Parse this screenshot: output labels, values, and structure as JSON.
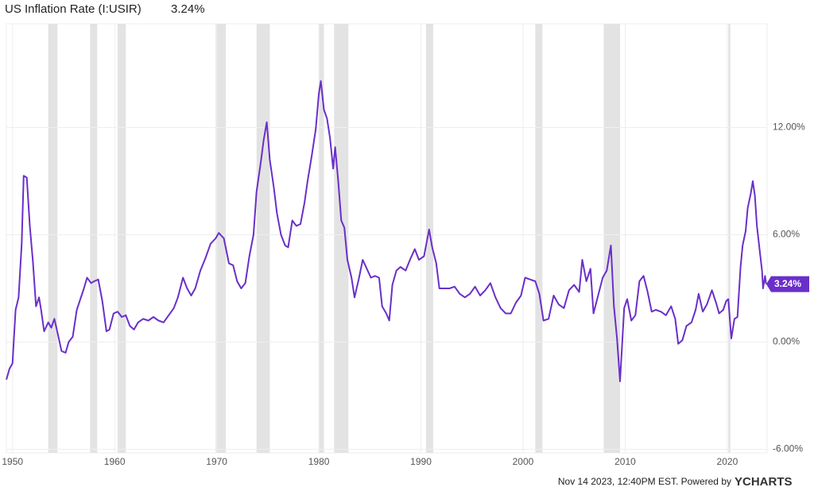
{
  "chart_data": {
    "type": "line",
    "title": "US Inflation Rate (I:USIR)",
    "current_label": "3.24%",
    "footer": "Nov 14 2023, 12:40PM EST. Powered by",
    "brand": "YCHARTS",
    "color": "#6a2fc9",
    "recession_color": "#e3e3e3",
    "recessions": [
      [
        1953.5,
        1954.4
      ],
      [
        1957.6,
        1958.3
      ],
      [
        1960.3,
        1961.1
      ],
      [
        1969.9,
        1970.9
      ],
      [
        1973.9,
        1975.2
      ],
      [
        1980.0,
        1980.5
      ],
      [
        1981.5,
        1982.9
      ],
      [
        1990.5,
        1991.2
      ],
      [
        2001.2,
        2001.9
      ],
      [
        2007.9,
        2009.5
      ],
      [
        2020.1,
        2020.3
      ]
    ],
    "xlim": [
      1949.4,
      2023.9
    ],
    "xticks": [
      1950,
      1960,
      1970,
      1980,
      1990,
      2000,
      2010,
      2020
    ],
    "ylim": [
      -6.2,
      17.8
    ],
    "yticks": [
      {
        "value": -6,
        "label": "-6.00%"
      },
      {
        "value": 0,
        "label": "0.00%"
      },
      {
        "value": 6,
        "label": "6.00%"
      },
      {
        "value": 12,
        "label": "12.00%"
      }
    ],
    "grid": true,
    "x": [
      1949.4,
      1949.7,
      1950.0,
      1950.3,
      1950.6,
      1950.9,
      1951.1,
      1951.4,
      1951.7,
      1952.0,
      1952.3,
      1952.6,
      1952.8,
      1953.1,
      1953.5,
      1953.8,
      1954.1,
      1954.5,
      1954.8,
      1955.2,
      1955.5,
      1955.9,
      1956.3,
      1956.7,
      1957.0,
      1957.3,
      1957.7,
      1958.0,
      1958.4,
      1958.8,
      1959.2,
      1959.5,
      1959.9,
      1960.3,
      1960.7,
      1961.1,
      1961.5,
      1961.9,
      1962.3,
      1962.8,
      1963.3,
      1963.8,
      1964.3,
      1964.8,
      1965.3,
      1965.8,
      1966.2,
      1966.7,
      1967.1,
      1967.5,
      1967.9,
      1968.4,
      1968.9,
      1969.4,
      1969.9,
      1970.2,
      1970.7,
      1971.2,
      1971.6,
      1972.0,
      1972.4,
      1972.8,
      1973.2,
      1973.6,
      1973.9,
      1974.3,
      1974.6,
      1974.9,
      1975.2,
      1975.6,
      1975.9,
      1976.3,
      1976.7,
      1977.0,
      1977.4,
      1977.8,
      1978.2,
      1978.6,
      1978.9,
      1979.3,
      1979.7,
      1980.0,
      1980.2,
      1980.5,
      1980.8,
      1981.1,
      1981.4,
      1981.6,
      1981.9,
      1982.2,
      1982.5,
      1982.8,
      1983.2,
      1983.5,
      1983.9,
      1984.3,
      1984.7,
      1985.1,
      1985.5,
      1985.9,
      1986.2,
      1986.6,
      1986.9,
      1987.2,
      1987.6,
      1988.0,
      1988.5,
      1989.0,
      1989.4,
      1989.8,
      1990.3,
      1990.8,
      1991.1,
      1991.5,
      1991.8,
      1992.2,
      1992.8,
      1993.3,
      1993.8,
      1994.3,
      1994.8,
      1995.3,
      1995.8,
      1996.3,
      1996.8,
      1997.3,
      1997.8,
      1998.3,
      1998.8,
      1999.3,
      1999.8,
      2000.2,
      2000.7,
      2001.2,
      2001.6,
      2002.0,
      2002.5,
      2003.0,
      2003.5,
      2004.0,
      2004.5,
      2005.0,
      2005.5,
      2005.8,
      2006.2,
      2006.6,
      2006.9,
      2007.3,
      2007.8,
      2008.2,
      2008.6,
      2008.9,
      2009.2,
      2009.5,
      2009.9,
      2010.2,
      2010.6,
      2011.0,
      2011.4,
      2011.8,
      2012.2,
      2012.6,
      2013.0,
      2013.5,
      2014.0,
      2014.5,
      2014.9,
      2015.2,
      2015.6,
      2016.0,
      2016.5,
      2016.9,
      2017.2,
      2017.6,
      2018.0,
      2018.5,
      2018.9,
      2019.2,
      2019.6,
      2019.9,
      2020.1,
      2020.4,
      2020.7,
      2021.0,
      2021.3,
      2021.5,
      2021.8,
      2022.0,
      2022.3,
      2022.5,
      2022.7,
      2022.9,
      2023.2,
      2023.4,
      2023.5,
      2023.7,
      2023.8
    ],
    "values": [
      -2.1,
      -1.5,
      -1.2,
      1.8,
      2.5,
      5.5,
      9.3,
      9.2,
      6.5,
      4.5,
      2.0,
      2.5,
      1.8,
      0.6,
      1.1,
      0.8,
      1.3,
      0.3,
      -0.5,
      -0.6,
      0.0,
      0.3,
      1.8,
      2.5,
      3.0,
      3.6,
      3.3,
      3.4,
      3.5,
      2.3,
      0.6,
      0.7,
      1.6,
      1.7,
      1.4,
      1.5,
      0.9,
      0.7,
      1.1,
      1.3,
      1.2,
      1.4,
      1.2,
      1.1,
      1.5,
      1.9,
      2.5,
      3.6,
      3.0,
      2.6,
      3.0,
      4.0,
      4.7,
      5.5,
      5.8,
      6.1,
      5.8,
      4.4,
      4.3,
      3.4,
      3.0,
      3.3,
      4.8,
      6.0,
      8.4,
      10.0,
      11.3,
      12.3,
      10.2,
      8.6,
      7.2,
      6.0,
      5.4,
      5.3,
      6.8,
      6.5,
      6.6,
      7.8,
      9.0,
      10.4,
      11.9,
      13.9,
      14.6,
      13.0,
      12.5,
      11.4,
      9.7,
      10.9,
      9.0,
      6.8,
      6.4,
      4.6,
      3.6,
      2.5,
      3.5,
      4.6,
      4.1,
      3.6,
      3.7,
      3.6,
      2.0,
      1.6,
      1.2,
      3.2,
      4.0,
      4.2,
      4.0,
      4.7,
      5.2,
      4.6,
      4.8,
      6.3,
      5.3,
      4.4,
      3.0,
      3.0,
      3.0,
      3.1,
      2.7,
      2.5,
      2.7,
      3.1,
      2.6,
      2.9,
      3.3,
      2.5,
      1.9,
      1.6,
      1.6,
      2.2,
      2.6,
      3.6,
      3.5,
      3.4,
      2.7,
      1.2,
      1.3,
      2.6,
      2.1,
      1.9,
      2.9,
      3.2,
      2.8,
      4.6,
      3.4,
      4.1,
      1.6,
      2.5,
      3.6,
      4.0,
      5.4,
      2.0,
      0.2,
      -2.2,
      1.9,
      2.4,
      1.2,
      1.5,
      3.4,
      3.7,
      2.8,
      1.7,
      1.8,
      1.7,
      1.5,
      2.0,
      1.3,
      -0.1,
      0.1,
      0.9,
      1.1,
      1.8,
      2.7,
      1.7,
      2.1,
      2.9,
      2.2,
      1.6,
      1.8,
      2.3,
      2.4,
      0.2,
      1.3,
      1.4,
      4.2,
      5.4,
      6.2,
      7.5,
      8.3,
      9.0,
      8.2,
      6.5,
      5.0,
      4.0,
      3.0,
      3.7,
      3.24
    ]
  }
}
